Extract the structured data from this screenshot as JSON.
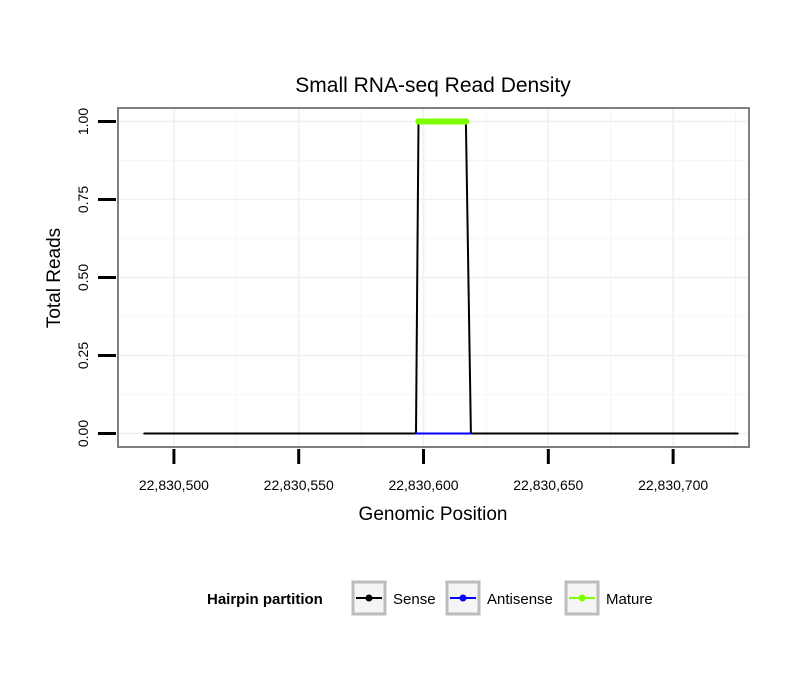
{
  "chart_data": {
    "type": "line",
    "title": "Small RNA-seq Read Density",
    "xlabel": "Genomic Position",
    "ylabel": "Total Reads",
    "xlim": [
      22830478,
      22830730
    ],
    "ylim": [
      -0.04,
      1.04
    ],
    "x_ticks": [
      22830500,
      22830550,
      22830600,
      22830650,
      22830700
    ],
    "x_tick_labels": [
      "22,830,500",
      "22,830,550",
      "22,830,600",
      "22,830,650",
      "22,830,700"
    ],
    "y_ticks": [
      0,
      0.25,
      0.5,
      0.75,
      1.0
    ],
    "y_tick_labels": [
      "0.00",
      "0.25",
      "0.50",
      "0.75",
      "1.00"
    ],
    "grid": true,
    "legend_position": "bottom",
    "legend_title": "Hairpin partition",
    "series": [
      {
        "name": "Sense",
        "color": "#000000",
        "x": [
          22830488,
          22830597,
          22830598,
          22830617,
          22830619,
          22830726
        ],
        "y": [
          0,
          0,
          1,
          1,
          0,
          0
        ]
      },
      {
        "name": "Antisense",
        "color": "#0000ff",
        "x": [
          22830597,
          22830619
        ],
        "y": [
          0,
          0
        ]
      },
      {
        "name": "Mature",
        "color": "#7fff00",
        "x": [
          22830598,
          22830617
        ],
        "y": [
          1,
          1
        ]
      }
    ]
  }
}
